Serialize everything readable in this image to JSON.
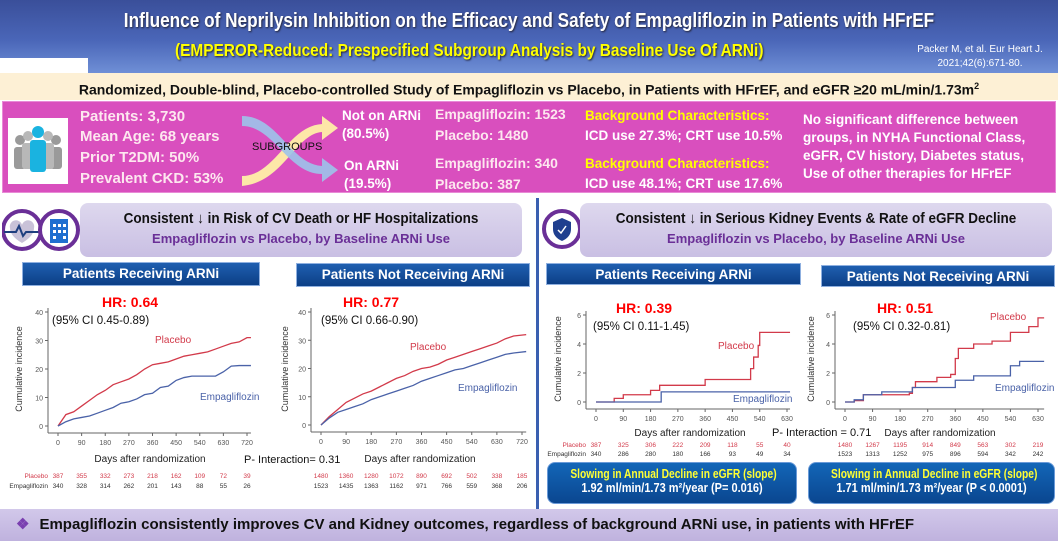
{
  "header": {
    "title": "Influence of Neprilysin Inhibition on the Efficacy and Safety of Empagliflozin in Patients with HFrEF",
    "subtitle": "(EMPEROR-Reduced: Prespecified Subgroup Analysis by Baseline Use Of ARNi)",
    "citation_line1": "Packer M, et al. Eur Heart J.",
    "citation_line2": "2021;42(6):671-80."
  },
  "design": "Randomized, Double-blind, Placebo-controlled Study of Empagliflozin vs Placebo, in Patients with HFrEF, and eGFR ≥20 mL/min/1.73m",
  "design_sup": "2",
  "population": [
    "Patients: 3,730",
    "Mean Age: 68 years",
    "Prior T2DM: 50%",
    "Prevalent CKD: 53%"
  ],
  "subgroups": {
    "label": "SUBGROUPS",
    "not_on": {
      "name": "Not on ARNi",
      "pct": "(80.5%)",
      "empa": "Empagliflozin: 1523",
      "placebo": "Placebo: 1480",
      "bg_title": "Background Characteristics:",
      "bg": "ICD use 27.3%; CRT use 10.5%"
    },
    "on": {
      "name": "On ARNi",
      "pct": "(19.5%)",
      "empa": "Empagliflozin: 340",
      "placebo": "Placebo: 387",
      "bg_title": "Background Characteristics:",
      "bg": "ICD use 48.1%; CRT use 17.6%"
    }
  },
  "no_diff": [
    "No significant difference between",
    "groups,  in NYHA Functional Class,",
    "eGFR, CV history, Diabetes status,",
    "Use of other therapies for HFrEF"
  ],
  "left_section": {
    "title": "Consistent ↓ in Risk of CV Death or HF Hospitalizations",
    "subtitle": "Empagliflozin vs Placebo, by Baseline ARNi Use",
    "p_interaction": "P- Interaction= 0.31"
  },
  "right_section": {
    "title": "Consistent ↓ in Serious Kidney Events & Rate of eGFR Decline",
    "subtitle": "Empagliflozin vs Placebo, by Baseline ARNi Use",
    "p_interaction": "P- Interaction = 0.71"
  },
  "colors": {
    "placebo": "#d23a4a",
    "empa": "#4a62a8",
    "hr": "#ff0000"
  },
  "chart_data": [
    {
      "type": "line",
      "panel": "Patients Receiving ARNi",
      "hr": "HR: 0.64",
      "ci": "(95% CI 0.45-0.89)",
      "xlabel": "Days after randomization",
      "ylabel": "Cumulative incidence",
      "xticks": [
        0,
        90,
        180,
        270,
        360,
        450,
        540,
        630,
        720
      ],
      "yticks": [
        0,
        10,
        20,
        30,
        40
      ],
      "xlim": [
        0,
        735
      ],
      "ylim": [
        0,
        40
      ],
      "step": false,
      "series": [
        {
          "name": "Placebo",
          "x": [
            0,
            30,
            60,
            90,
            120,
            150,
            180,
            210,
            240,
            270,
            300,
            330,
            360,
            390,
            420,
            450,
            480,
            510,
            540,
            570,
            600,
            630,
            660,
            690,
            720,
            735
          ],
          "y": [
            0,
            4,
            5,
            7,
            9,
            11,
            12.5,
            14.5,
            15.5,
            16.5,
            18,
            20,
            21.5,
            22,
            22.5,
            23.5,
            24.5,
            25,
            25.5,
            26,
            27,
            28,
            29,
            29.5,
            31,
            31
          ]
        },
        {
          "name": "Empagliflozin",
          "x": [
            0,
            30,
            60,
            90,
            120,
            150,
            180,
            210,
            240,
            270,
            300,
            330,
            360,
            390,
            420,
            450,
            480,
            510,
            540,
            570,
            600,
            630,
            660,
            690,
            735
          ],
          "y": [
            0,
            1.5,
            2.5,
            3,
            3.5,
            4.5,
            5.5,
            6.5,
            8,
            8.5,
            9.5,
            11,
            11.5,
            13.5,
            14,
            16,
            17,
            17.5,
            17.5,
            17.5,
            17.5,
            19,
            21,
            21.2,
            21.2
          ]
        }
      ],
      "at_risk": {
        "placebo": [
          "387",
          "355",
          "332",
          "273",
          "218",
          "162",
          "109",
          "72",
          "39"
        ],
        "empa": [
          "340",
          "328",
          "314",
          "262",
          "201",
          "143",
          "88",
          "55",
          "26"
        ]
      }
    },
    {
      "type": "line",
      "panel": "Patients Not Receiving ARNi",
      "hr": "HR: 0.77",
      "ci": "(95% CI 0.66-0.90)",
      "xlabel": "Days after randomization",
      "ylabel": "Cumulative incidence",
      "xticks": [
        0,
        90,
        180,
        270,
        360,
        450,
        540,
        630,
        720
      ],
      "yticks": [
        0,
        10,
        20,
        30,
        40
      ],
      "xlim": [
        0,
        735
      ],
      "ylim": [
        0,
        40
      ],
      "step": false,
      "series": [
        {
          "name": "Placebo",
          "x": [
            0,
            30,
            60,
            90,
            120,
            150,
            180,
            210,
            240,
            270,
            300,
            330,
            360,
            390,
            420,
            450,
            480,
            510,
            540,
            570,
            600,
            630,
            660,
            690,
            735
          ],
          "y": [
            0,
            3,
            5.5,
            8,
            9.5,
            11,
            12,
            13.5,
            15,
            16.5,
            17.5,
            19,
            20,
            20.5,
            21.5,
            23,
            24,
            25,
            26,
            27,
            28,
            29,
            30.5,
            31.5,
            32
          ]
        },
        {
          "name": "Empagliflozin",
          "x": [
            0,
            30,
            60,
            90,
            120,
            150,
            180,
            210,
            240,
            270,
            300,
            330,
            360,
            390,
            420,
            450,
            480,
            510,
            540,
            570,
            600,
            630,
            660,
            690,
            735
          ],
          "y": [
            0,
            2.5,
            4.5,
            5.5,
            6.5,
            7.5,
            9,
            10,
            11,
            12,
            13,
            14,
            15.5,
            16.5,
            17.5,
            18.5,
            19.5,
            20,
            21,
            22,
            23,
            24,
            25,
            25.5,
            26
          ]
        }
      ],
      "at_risk": {
        "placebo": [
          "1480",
          "1360",
          "1280",
          "1072",
          "890",
          "692",
          "502",
          "338",
          "185"
        ],
        "empa": [
          "1523",
          "1435",
          "1363",
          "1162",
          "971",
          "766",
          "559",
          "368",
          "206"
        ]
      }
    },
    {
      "type": "line",
      "panel": "Patients Receiving ARNi",
      "hr": "HR: 0.39",
      "ci": "(95% CI 0.11-1.45)",
      "xlabel": "Days after randomization",
      "ylabel": "Cumulative incidence",
      "xticks": [
        0,
        90,
        180,
        270,
        360,
        450,
        540,
        630
      ],
      "yticks": [
        0,
        2,
        4,
        6
      ],
      "xlim": [
        0,
        640
      ],
      "ylim": [
        0,
        6
      ],
      "step": true,
      "series": [
        {
          "name": "Placebo",
          "x": [
            0,
            60,
            90,
            180,
            210,
            360,
            510,
            520,
            535,
            540,
            640
          ],
          "y": [
            0,
            0.25,
            0.5,
            0.8,
            1.15,
            1.55,
            2.3,
            3.1,
            3.9,
            4.8,
            4.8
          ]
        },
        {
          "name": "Empagliflozin",
          "x": [
            0,
            215,
            640
          ],
          "y": [
            0,
            0.7,
            0.7
          ]
        }
      ],
      "at_risk": {
        "placebo": [
          "387",
          "325",
          "306",
          "222",
          "209",
          "118",
          "55",
          "40"
        ],
        "empa": [
          "340",
          "286",
          "280",
          "180",
          "166",
          "93",
          "49",
          "34"
        ]
      },
      "slope_title": "Slowing in Annual Decline in eGFR (slope)",
      "slope_value": "1.92 ml/min/1.73 m²/year (P= 0.016)"
    },
    {
      "type": "line",
      "panel": "Patients Not Receiving ARNi",
      "hr": "HR: 0.51",
      "ci": "(95% CI 0.32-0.81)",
      "xlabel": "Days after randomization",
      "ylabel": "Cumulative incidence",
      "xticks": [
        0,
        90,
        180,
        270,
        360,
        450,
        540,
        630
      ],
      "yticks": [
        0,
        2,
        4,
        6
      ],
      "xlim": [
        0,
        650
      ],
      "ylim": [
        0,
        6
      ],
      "step": true,
      "series": [
        {
          "name": "Placebo",
          "x": [
            0,
            30,
            60,
            210,
            220,
            230,
            300,
            345,
            360,
            370,
            420,
            480,
            540,
            600,
            630,
            650
          ],
          "y": [
            0,
            0.1,
            0.5,
            0.6,
            1.0,
            1.4,
            1.7,
            1.9,
            3.0,
            3.7,
            4.0,
            4.2,
            4.8,
            5.2,
            5.8,
            5.8
          ]
        },
        {
          "name": "Empagliflozin",
          "x": [
            0,
            30,
            60,
            120,
            220,
            345,
            360,
            420,
            520,
            540,
            570,
            650
          ],
          "y": [
            0,
            0.15,
            0.5,
            0.7,
            1.0,
            1.0,
            1.5,
            1.8,
            1.8,
            2.5,
            2.8,
            2.8
          ]
        }
      ],
      "at_risk": {
        "placebo": [
          "1480",
          "1267",
          "1195",
          "914",
          "849",
          "563",
          "302",
          "219"
        ],
        "empa": [
          "1523",
          "1313",
          "1252",
          "975",
          "896",
          "594",
          "342",
          "242"
        ]
      },
      "slope_title": "Slowing in Annual Decline in eGFR (slope)",
      "slope_value": "1.71 ml/min/1.73 m²/year (P < 0.0001)"
    }
  ],
  "at_risk_labels": {
    "placebo": "Placebo",
    "empa": "Empagliflozin"
  },
  "conclusion": "Empagliflozin consistently improves CV and Kidney outcomes, regardless of background ARNi use, in patients with HFrEF",
  "conclusion_icon": "❖"
}
